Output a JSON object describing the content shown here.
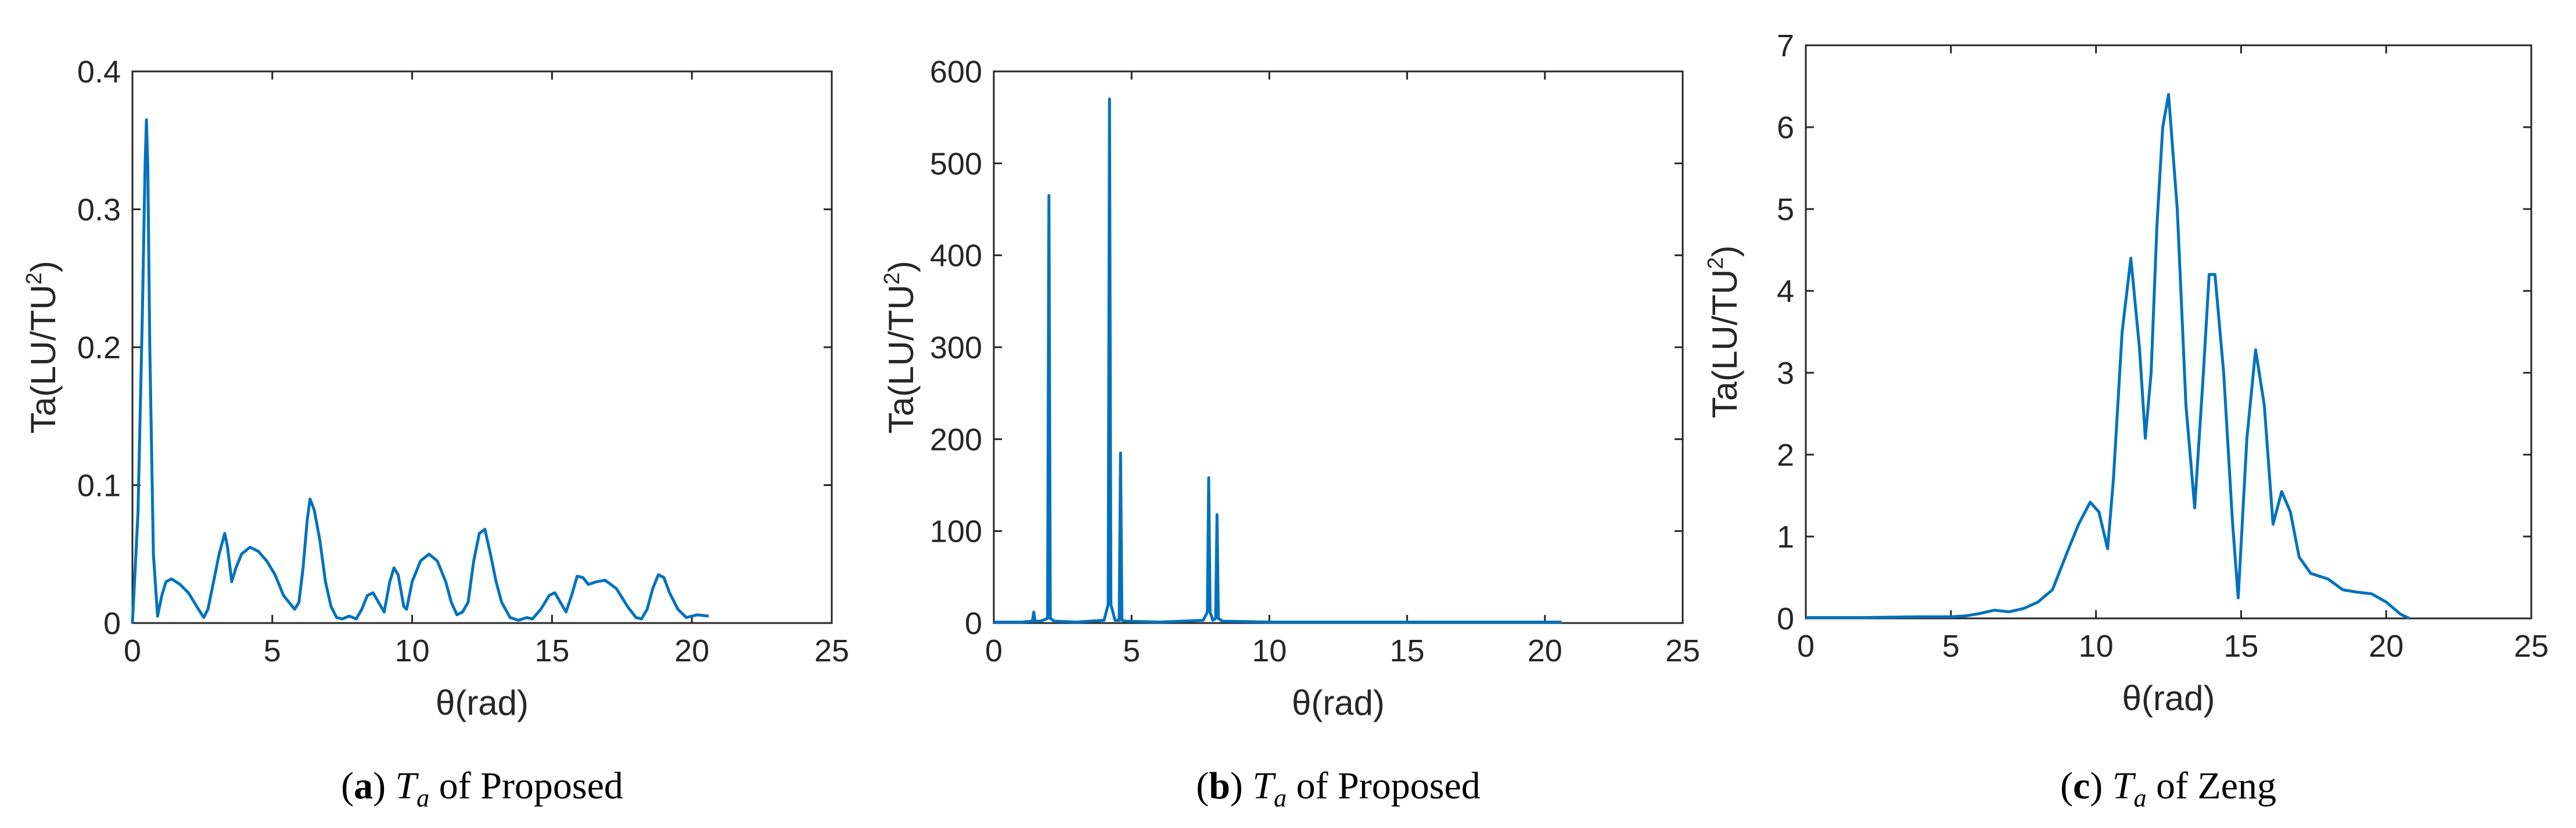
{
  "colors": {
    "line": "#0072BD",
    "axis": "#262626",
    "background": "#ffffff"
  },
  "chart_data": [
    {
      "type": "line",
      "xlabel": "θ(rad)",
      "ylabel": "Ta(LU/TU²)",
      "ylabel_parts": {
        "main": "Ta(LU/TU",
        "sup": "2",
        "close": ")"
      },
      "xlim": [
        0,
        25
      ],
      "ylim": [
        0,
        0.4
      ],
      "xticks": [
        "0",
        "5",
        "10",
        "15",
        "20",
        "25"
      ],
      "yticks": [
        "0",
        "0.1",
        "0.2",
        "0.3",
        "0.4"
      ],
      "caption": {
        "letter": "a",
        "symbol": "T",
        "sub": "a",
        "text": "of Proposed"
      },
      "series": [
        {
          "x": [
            0,
            0.2,
            0.35,
            0.45,
            0.5,
            0.55,
            0.62,
            0.75,
            0.9,
            1.05,
            1.2,
            1.4,
            1.7,
            2.0,
            2.3,
            2.55,
            2.7,
            2.9,
            3.1,
            3.3,
            3.4,
            3.55,
            3.7,
            3.9,
            4.2,
            4.5,
            4.8,
            5.1,
            5.4,
            5.6,
            5.8,
            5.95,
            6.1,
            6.25,
            6.35,
            6.5,
            6.7,
            6.9,
            7.1,
            7.3,
            7.5,
            7.75,
            8.0,
            8.2,
            8.4,
            8.6,
            8.8,
            9.0,
            9.2,
            9.35,
            9.5,
            9.7,
            9.8,
            10.0,
            10.3,
            10.6,
            10.9,
            11.2,
            11.4,
            11.6,
            11.8,
            12.0,
            12.2,
            12.4,
            12.6,
            12.8,
            13.0,
            13.2,
            13.5,
            13.8,
            14.1,
            14.3,
            14.6,
            14.9,
            15.1,
            15.3,
            15.5,
            15.7,
            15.9,
            16.1,
            16.3,
            16.6,
            16.9,
            17.3,
            17.7,
            18.0,
            18.2,
            18.4,
            18.6,
            18.8,
            19.0,
            19.2,
            19.5,
            19.8,
            20.2,
            20.6
          ],
          "y": [
            0,
            0.08,
            0.22,
            0.33,
            0.365,
            0.33,
            0.2,
            0.05,
            0.005,
            0.02,
            0.03,
            0.032,
            0.028,
            0.022,
            0.012,
            0.004,
            0.01,
            0.03,
            0.05,
            0.065,
            0.055,
            0.03,
            0.04,
            0.05,
            0.055,
            0.052,
            0.045,
            0.035,
            0.02,
            0.015,
            0.01,
            0.015,
            0.04,
            0.075,
            0.09,
            0.082,
            0.06,
            0.03,
            0.012,
            0.004,
            0.003,
            0.005,
            0.003,
            0.01,
            0.02,
            0.022,
            0.015,
            0.008,
            0.03,
            0.04,
            0.035,
            0.012,
            0.01,
            0.03,
            0.045,
            0.05,
            0.045,
            0.03,
            0.015,
            0.006,
            0.008,
            0.015,
            0.045,
            0.065,
            0.068,
            0.05,
            0.03,
            0.015,
            0.004,
            0.002,
            0.004,
            0.003,
            0.01,
            0.02,
            0.022,
            0.015,
            0.008,
            0.02,
            0.034,
            0.033,
            0.028,
            0.03,
            0.031,
            0.025,
            0.012,
            0.004,
            0.003,
            0.01,
            0.025,
            0.035,
            0.033,
            0.022,
            0.01,
            0.004,
            0.006,
            0.005
          ]
        }
      ]
    },
    {
      "type": "line",
      "xlabel": "θ(rad)",
      "ylabel": "Ta(LU/TU²)",
      "ylabel_parts": {
        "main": "Ta(LU/TU",
        "sup": "2",
        "close": ")"
      },
      "xlim": [
        0,
        25
      ],
      "ylim": [
        0,
        600
      ],
      "xticks": [
        "0",
        "5",
        "10",
        "15",
        "20",
        "25"
      ],
      "yticks": [
        "0",
        "100",
        "200",
        "300",
        "400",
        "500",
        "600"
      ],
      "caption": {
        "letter": "b",
        "symbol": "T",
        "sub": "a",
        "text": "of Proposed"
      },
      "series": [
        {
          "x": [
            0,
            1.0,
            1.4,
            1.45,
            1.5,
            1.7,
            1.95,
            2.0,
            2.05,
            2.2,
            3.0,
            4.0,
            4.15,
            4.2,
            4.25,
            4.4,
            4.55,
            4.6,
            4.65,
            4.8,
            6.0,
            7.6,
            7.75,
            7.8,
            7.85,
            7.95,
            8.05,
            8.1,
            8.15,
            8.3,
            10.0,
            15.0,
            20.0,
            20.6
          ],
          "y": [
            1,
            1,
            2,
            12,
            2,
            2,
            5,
            465,
            5,
            2,
            1,
            3,
            20,
            570,
            20,
            3,
            3,
            185,
            3,
            2,
            1,
            3,
            12,
            158,
            12,
            3,
            5,
            118,
            5,
            2,
            1,
            1,
            1,
            1
          ]
        }
      ]
    },
    {
      "type": "line",
      "xlabel": "θ(rad)",
      "ylabel": "Ta(LU/TU²)",
      "ylabel_parts": {
        "main": "Ta(LU/TU",
        "sup": "2",
        "close": ")"
      },
      "xlim": [
        0,
        25
      ],
      "ylim": [
        0,
        7
      ],
      "xticks": [
        "0",
        "5",
        "10",
        "15",
        "20",
        "25"
      ],
      "yticks": [
        "0",
        "1",
        "2",
        "3",
        "4",
        "5",
        "6",
        "7"
      ],
      "caption": {
        "letter": "c",
        "symbol": "T",
        "sub": "a",
        "text": "of Zeng"
      },
      "series": [
        {
          "x": [
            0,
            2.0,
            4.0,
            5.0,
            5.5,
            6.0,
            6.5,
            7.0,
            7.5,
            8.0,
            8.5,
            9.0,
            9.4,
            9.8,
            10.1,
            10.4,
            10.6,
            10.9,
            11.2,
            11.5,
            11.7,
            11.9,
            12.1,
            12.3,
            12.5,
            12.8,
            13.1,
            13.4,
            13.7,
            13.9,
            14.1,
            14.4,
            14.7,
            14.9,
            15.2,
            15.5,
            15.8,
            16.1,
            16.4,
            16.7,
            17.0,
            17.4,
            18.0,
            18.5,
            19.0,
            19.5,
            20.0,
            20.5,
            20.8
          ],
          "y": [
            0.01,
            0.01,
            0.02,
            0.02,
            0.03,
            0.06,
            0.1,
            0.08,
            0.12,
            0.2,
            0.35,
            0.8,
            1.15,
            1.42,
            1.3,
            0.85,
            1.7,
            3.5,
            4.4,
            3.3,
            2.2,
            3.0,
            4.8,
            6.0,
            6.4,
            5.0,
            2.6,
            1.35,
            3.0,
            4.2,
            4.2,
            3.0,
            1.2,
            0.25,
            2.2,
            3.28,
            2.6,
            1.15,
            1.55,
            1.3,
            0.75,
            0.55,
            0.48,
            0.35,
            0.32,
            0.3,
            0.2,
            0.05,
            0.0
          ]
        }
      ]
    }
  ]
}
